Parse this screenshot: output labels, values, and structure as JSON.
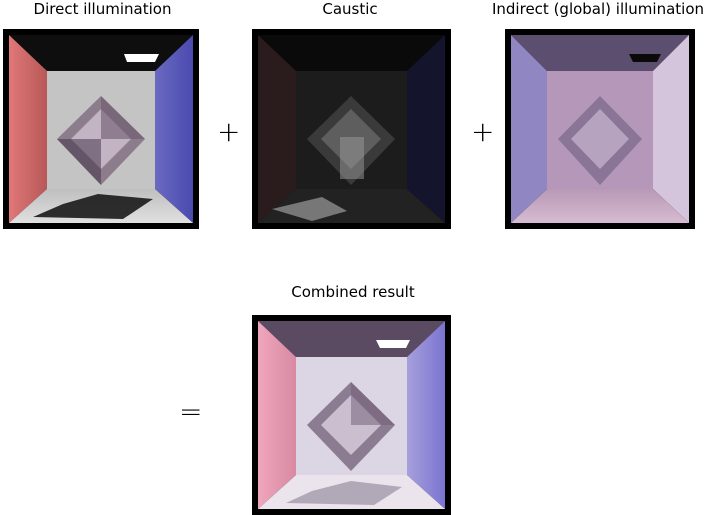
{
  "labels": {
    "direct": "Direct illumination",
    "caustic": "Caustic",
    "indirect": "Indirect (global) illumination",
    "combined": "Combined result"
  },
  "operators": {
    "plus1": "+",
    "plus2": "+",
    "equals": "="
  },
  "panels": [
    {
      "name": "direct-illumination-render",
      "left_wall": "#d96a6a",
      "right_wall": "#5a5ab8",
      "back_wall": "#bdbdbd",
      "floor": "#cfcfcf",
      "light": "#ffffff"
    },
    {
      "name": "caustic-render",
      "left_wall": "#3a2424",
      "right_wall": "#1c1c3a",
      "back_wall": "#1e1e1e",
      "floor": "#262626",
      "light": "#0a0a0a"
    },
    {
      "name": "indirect-illumination-render",
      "left_wall": "#8f86c2",
      "right_wall": "#d6c6de",
      "back_wall": "#b497b9",
      "floor": "#c4aac4",
      "light": "#101010"
    },
    {
      "name": "combined-result-render",
      "left_wall": "#e59ab0",
      "right_wall": "#8c86d6",
      "back_wall": "#d9d3e2",
      "floor": "#e8e2ea",
      "light": "#ffffff"
    }
  ]
}
